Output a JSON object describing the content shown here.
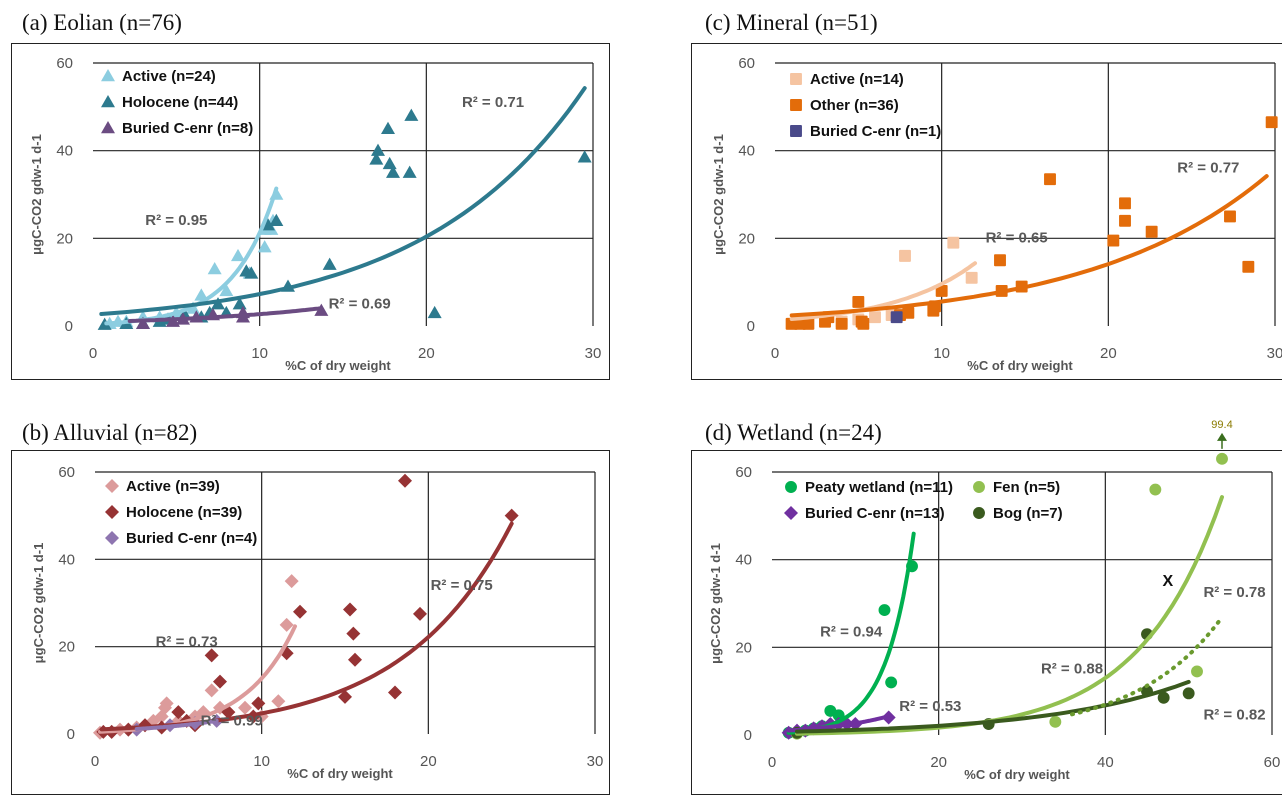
{
  "chart_data": [
    {
      "id": "a",
      "type": "scatter",
      "title": "(a)  Eolian (n=76)",
      "xlabel": "%C of dry weight",
      "ylabel": "μgC-CO2 gdw-1 d-1",
      "xlim": [
        0,
        30
      ],
      "ylim": [
        0,
        60
      ],
      "xticks": [
        "0",
        "10",
        "20",
        "30"
      ],
      "yticks": [
        "0",
        "20",
        "40",
        "60"
      ],
      "grid": true,
      "legend_position": "top-left",
      "series": [
        {
          "name": "Active (n=24)",
          "marker": "triangle",
          "color": "#8ccde0",
          "points": [
            [
              1,
              0.5
            ],
            [
              1.5,
              1
            ],
            [
              2,
              1
            ],
            [
              3,
              2
            ],
            [
              4,
              2
            ],
            [
              5,
              3
            ],
            [
              6,
              4
            ],
            [
              6.5,
              7
            ],
            [
              7.3,
              13
            ],
            [
              8,
              8
            ],
            [
              8.7,
              16
            ],
            [
              9.4,
              12
            ],
            [
              10.3,
              22
            ],
            [
              10.7,
              22
            ],
            [
              10.3,
              18
            ],
            [
              11,
              30
            ],
            [
              10.8,
              24
            ]
          ],
          "trend": {
            "a": 0.43,
            "b": 0.39,
            "x0": 0.8,
            "x1": 11
          }
        },
        {
          "name": "Holocene (n=44)",
          "marker": "triangle",
          "color": "#2d7a8e",
          "points": [
            [
              0.7,
              0.3
            ],
            [
              2,
              0.5
            ],
            [
              3,
              0.5
            ],
            [
              4,
              1
            ],
            [
              4.5,
              1.5
            ],
            [
              5.5,
              2.5
            ],
            [
              6.5,
              2
            ],
            [
              7,
              3
            ],
            [
              7.5,
              5
            ],
            [
              8,
              3
            ],
            [
              8.8,
              5
            ],
            [
              9.2,
              12.5
            ],
            [
              9.5,
              12
            ],
            [
              10.5,
              23
            ],
            [
              11,
              24
            ],
            [
              11.7,
              9
            ],
            [
              14.2,
              14
            ],
            [
              17,
              38
            ],
            [
              17.1,
              40
            ],
            [
              17.7,
              45
            ],
            [
              17.8,
              37
            ],
            [
              18,
              35
            ],
            [
              19,
              35
            ],
            [
              19.1,
              48
            ],
            [
              20.5,
              3
            ],
            [
              29.5,
              38.5
            ]
          ],
          "trend": {
            "a": 2.6,
            "b": 0.103,
            "x0": 0.5,
            "x1": 29.5
          }
        },
        {
          "name": "Buried C-enr (n=8)",
          "marker": "triangle",
          "color": "#6b4c82",
          "points": [
            [
              3,
              0.5
            ],
            [
              4.8,
              1
            ],
            [
              5.4,
              1.5
            ],
            [
              6.2,
              2
            ],
            [
              7.2,
              2.5
            ],
            [
              9,
              2
            ],
            [
              9,
              3
            ],
            [
              13.7,
              3.5
            ]
          ],
          "trend": {
            "a": 0.9,
            "b": 0.11,
            "x0": 2.2,
            "x1": 13.7
          }
        }
      ],
      "annotations": [
        {
          "text": "R² = 0.71",
          "x": 24,
          "y": 50
        },
        {
          "text": "R² = 0.95",
          "x": 5,
          "y": 23
        },
        {
          "text": "R² = 0.69",
          "x": 16,
          "y": 4
        }
      ]
    },
    {
      "id": "b",
      "type": "scatter",
      "title": "(b)  Alluvial (n=82)",
      "xlabel": "%C of dry weight",
      "ylabel": "μgC-CO2 gdw-1 d-1",
      "xlim": [
        0,
        30
      ],
      "ylim": [
        0,
        60
      ],
      "xticks": [
        "0",
        "10",
        "20",
        "30"
      ],
      "yticks": [
        "0",
        "20",
        "40",
        "60"
      ],
      "grid": true,
      "legend_position": "top-left",
      "series": [
        {
          "name": "Active (n=39)",
          "marker": "diamond",
          "color": "#dc9b9b",
          "points": [
            [
              0.3,
              0.3
            ],
            [
              1,
              0.5
            ],
            [
              1.5,
              1
            ],
            [
              2,
              1
            ],
            [
              2.5,
              1.5
            ],
            [
              3,
              2
            ],
            [
              3.5,
              3
            ],
            [
              4,
              4
            ],
            [
              4.2,
              6
            ],
            [
              4.3,
              7
            ],
            [
              5,
              3
            ],
            [
              6,
              4
            ],
            [
              6.5,
              5
            ],
            [
              7,
              10
            ],
            [
              7.5,
              6
            ],
            [
              8,
              5
            ],
            [
              9,
              6
            ],
            [
              10,
              4
            ],
            [
              11,
              7.5
            ],
            [
              11.5,
              25
            ],
            [
              11.8,
              35
            ]
          ],
          "trend": {
            "a": 0.47,
            "b": 0.33,
            "x0": 0.3,
            "x1": 12
          }
        },
        {
          "name": "Holocene (n=39)",
          "marker": "diamond",
          "color": "#963334",
          "points": [
            [
              0.5,
              0.5
            ],
            [
              1,
              0.5
            ],
            [
              2,
              1
            ],
            [
              3,
              2
            ],
            [
              4,
              1.5
            ],
            [
              5,
              5
            ],
            [
              5.5,
              3
            ],
            [
              6,
              2
            ],
            [
              7,
              18
            ],
            [
              7.5,
              12
            ],
            [
              8,
              5
            ],
            [
              9.5,
              4
            ],
            [
              9.8,
              7
            ],
            [
              11.5,
              18.5
            ],
            [
              12.3,
              28
            ],
            [
              15,
              8.5
            ],
            [
              15.3,
              28.5
            ],
            [
              15.5,
              23
            ],
            [
              15.6,
              17
            ],
            [
              18,
              9.5
            ],
            [
              18.6,
              58
            ],
            [
              19.5,
              27.5
            ],
            [
              25,
              50
            ]
          ],
          "trend": {
            "a": 1.0,
            "b": 0.155,
            "x0": 0.4,
            "x1": 25
          }
        },
        {
          "name": "Buried C-enr (n=4)",
          "marker": "diamond",
          "color": "#8e75b0",
          "points": [
            [
              2.5,
              1
            ],
            [
              4.5,
              2
            ],
            [
              6,
              2.5
            ],
            [
              7.3,
              3
            ]
          ],
          "trend": {
            "a": 0.7,
            "b": 0.2,
            "x0": 2.5,
            "x1": 7.3
          }
        }
      ],
      "annotations": [
        {
          "text": "R² = 0.75",
          "x": 22,
          "y": 33
        },
        {
          "text": "R² = 0.73",
          "x": 5.5,
          "y": 20
        },
        {
          "text": "R² = 0.99",
          "x": 8.2,
          "y": 2
        }
      ]
    },
    {
      "id": "c",
      "type": "scatter",
      "title": "(c)  Mineral (n=51)",
      "xlabel": "%C of dry weight",
      "ylabel": "μgC-CO2 gdw-1 d-1",
      "xlim": [
        0,
        30
      ],
      "ylim": [
        0,
        60
      ],
      "xticks": [
        "0",
        "10",
        "20",
        "30"
      ],
      "yticks": [
        "0",
        "20",
        "40",
        "60"
      ],
      "grid": true,
      "legend_position": "top-left",
      "series": [
        {
          "name": "Active (n=14)",
          "marker": "square",
          "color": "#f5c4a1",
          "points": [
            [
              1,
              0.5
            ],
            [
              2,
              0.5
            ],
            [
              3,
              1
            ],
            [
              4,
              1
            ],
            [
              5,
              1.5
            ],
            [
              6,
              2
            ],
            [
              7,
              2.5
            ],
            [
              7.8,
              16
            ],
            [
              10.7,
              19
            ],
            [
              11.8,
              11
            ]
          ],
          "trend": {
            "a": 1.3,
            "b": 0.2,
            "x0": 1,
            "x1": 12
          }
        },
        {
          "name": "Other (n=36)",
          "marker": "square",
          "color": "#e36c0a",
          "points": [
            [
              1,
              0.5
            ],
            [
              1.5,
              0.5
            ],
            [
              2,
              0.5
            ],
            [
              3,
              1
            ],
            [
              3.2,
              2
            ],
            [
              4,
              0.5
            ],
            [
              5,
              5.5
            ],
            [
              5.2,
              1
            ],
            [
              5.3,
              0.5
            ],
            [
              7.5,
              2.5
            ],
            [
              8,
              3
            ],
            [
              9.5,
              3.5
            ],
            [
              9.6,
              4.5
            ],
            [
              10,
              8
            ],
            [
              13.5,
              15
            ],
            [
              13.6,
              8
            ],
            [
              14.8,
              9
            ],
            [
              16.5,
              33.5
            ],
            [
              20.3,
              19.5
            ],
            [
              21,
              24
            ],
            [
              21,
              28
            ],
            [
              22.6,
              21.5
            ],
            [
              27.3,
              25
            ],
            [
              28.4,
              13.5
            ],
            [
              29.8,
              46.5
            ]
          ],
          "trend": {
            "a": 2.2,
            "b": 0.093,
            "x0": 1,
            "x1": 29.5
          }
        },
        {
          "name": "Buried C-enr (n=1)",
          "marker": "square",
          "color": "#4a4a8a",
          "points": [
            [
              7.3,
              2
            ]
          ],
          "trend": null
        }
      ],
      "annotations": [
        {
          "text": "R² = 0.65",
          "x": 14.5,
          "y": 19
        },
        {
          "text": "R² = 0.77",
          "x": 26,
          "y": 35
        }
      ]
    },
    {
      "id": "d",
      "type": "scatter",
      "title": "(d)  Wetland (n=24)",
      "xlabel": "%C of dry weight",
      "ylabel": "μgC-CO2 gdw-1 d-1",
      "xlim": [
        0,
        60
      ],
      "ylim": [
        0,
        60
      ],
      "xticks": [
        "0",
        "20",
        "40",
        "60"
      ],
      "yticks": [
        "0",
        "20",
        "40",
        "60"
      ],
      "grid": true,
      "legend_position": "top-left",
      "series": [
        {
          "name": "Peaty wetland (n=11)",
          "marker": "circle",
          "color": "#00b050",
          "points": [
            [
              2,
              0.5
            ],
            [
              3,
              0.5
            ],
            [
              4,
              1
            ],
            [
              5,
              1.5
            ],
            [
              6,
              2
            ],
            [
              7,
              5.5
            ],
            [
              8,
              4.5
            ],
            [
              13.5,
              28.5
            ],
            [
              14.3,
              12
            ],
            [
              16.8,
              38.5
            ]
          ],
          "trend": {
            "a": 0.28,
            "b": 0.3,
            "x0": 2,
            "x1": 17
          }
        },
        {
          "name": "Buried C-enr (n=13)",
          "marker": "diamond",
          "color": "#7030a0",
          "points": [
            [
              2,
              0.5
            ],
            [
              3,
              1
            ],
            [
              4,
              1
            ],
            [
              5,
              1.5
            ],
            [
              6,
              2
            ],
            [
              7,
              2.5
            ],
            [
              8,
              2.5
            ],
            [
              9,
              2.5
            ],
            [
              10,
              2.5
            ],
            [
              14,
              4
            ]
          ],
          "trend": {
            "a": 0.8,
            "b": 0.12,
            "x0": 2,
            "x1": 14
          }
        },
        {
          "name": "Fen (n=5)",
          "marker": "circle",
          "color": "#92c050",
          "points": [
            [
              3,
              0.3
            ],
            [
              34,
              3
            ],
            [
              46,
              56
            ],
            [
              51,
              14.5
            ],
            [
              54,
              63
            ]
          ],
          "trend": {
            "a": 0.22,
            "b": 0.102,
            "x0": 3,
            "x1": 54
          }
        },
        {
          "name": "Bog (n=7)",
          "marker": "circle",
          "color": "#3a5a1e",
          "points": [
            [
              3,
              0.5
            ],
            [
              26,
              2.5
            ],
            [
              45,
              23
            ],
            [
              45,
              10
            ],
            [
              47,
              8.5
            ],
            [
              50,
              9.5
            ]
          ],
          "trend": {
            "a": 0.65,
            "b": 0.0585,
            "x0": 3,
            "x1": 50
          }
        }
      ],
      "extra_trend": {
        "name": "dotted",
        "color": "#6a9a2e",
        "a": 0.145,
        "b": 0.0967,
        "x0": 36,
        "x1": 54
      },
      "annotations": [
        {
          "text": "R² = 0.94",
          "x": 9.5,
          "y": 22.5
        },
        {
          "text": "R² = 0.53",
          "x": 19,
          "y": 5.5
        },
        {
          "text": "R² = 0.88",
          "x": 36,
          "y": 14
        },
        {
          "text": "R² = 0.78",
          "x": 55.5,
          "y": 31.5
        },
        {
          "text": "R² = 0.82",
          "x": 55.5,
          "y": 3.5
        }
      ],
      "cross_label": {
        "text": "X",
        "x": 47.5,
        "y": 34
      },
      "arrow_label": {
        "text": "99.4",
        "x": 54,
        "y": 63
      }
    }
  ]
}
